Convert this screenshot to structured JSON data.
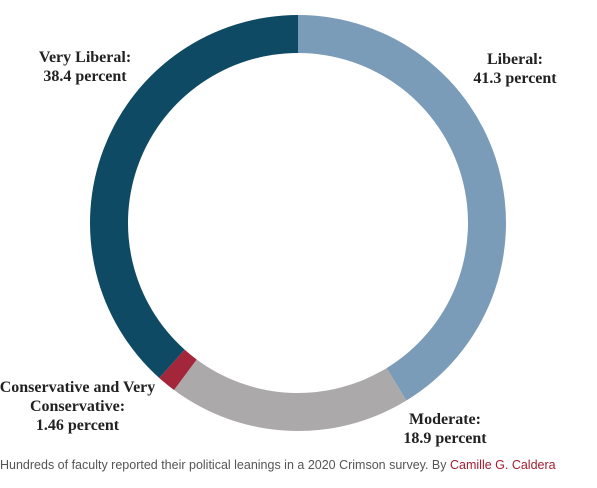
{
  "chart_data": {
    "type": "donut",
    "categories": [
      "Liberal:",
      "Moderate:",
      "Conservative and Very Conservative:",
      "Very Liberal:"
    ],
    "values": [
      41.3,
      18.9,
      1.46,
      38.4
    ],
    "value_labels": [
      "41.3 percent",
      "18.9 percent",
      "1.46 percent",
      "38.4 percent"
    ],
    "colors": [
      "#7b9cb9",
      "#aba9a9",
      "#a3263a",
      "#0e4a64"
    ],
    "caption": "Hundreds of faculty reported their political leanings in a 2020 Crimson survey. By",
    "credit": "Camille G. Caldera"
  }
}
